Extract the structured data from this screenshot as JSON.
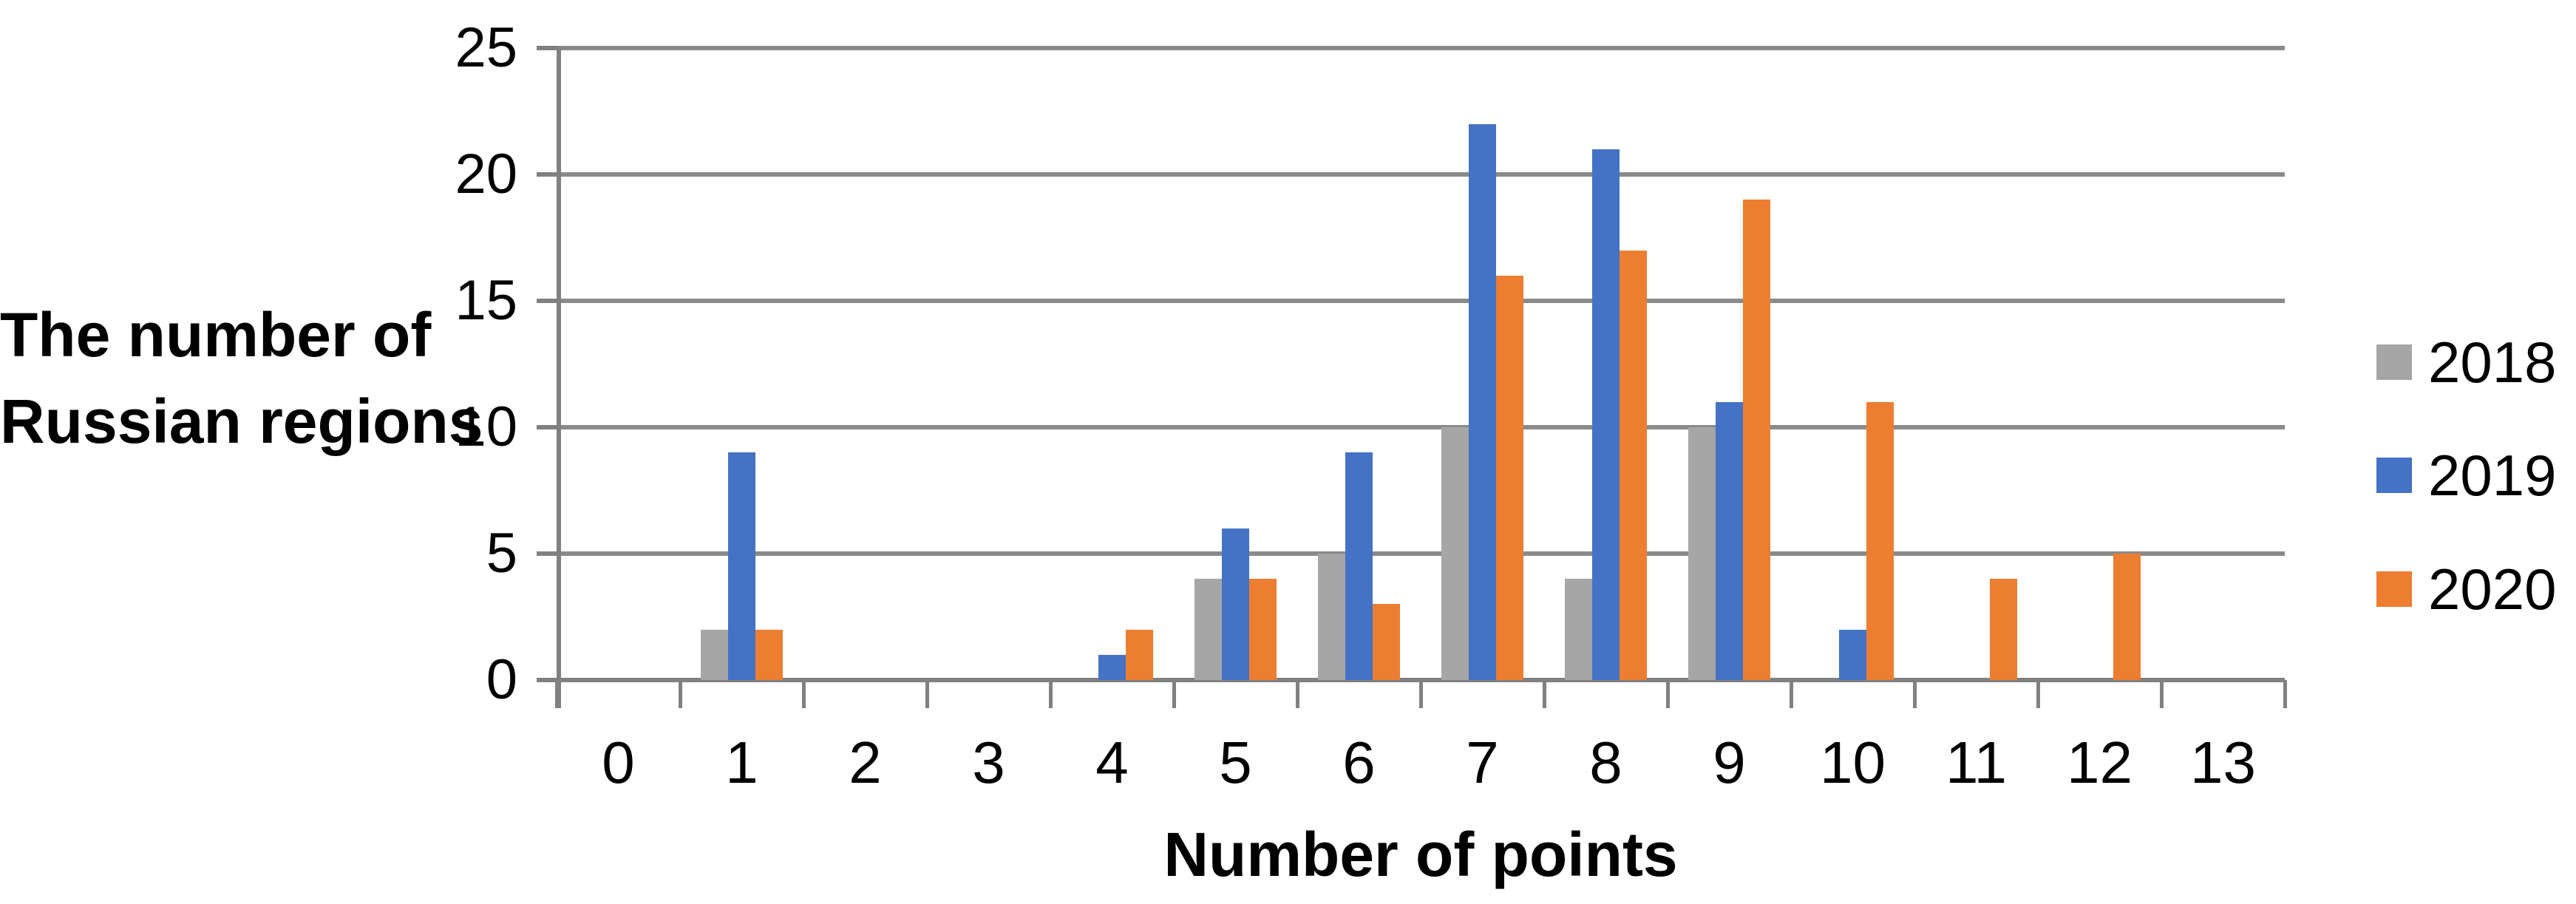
{
  "y_axis_title": {
    "line1": "The number of",
    "line2": "Russian regions"
  },
  "x_axis_title": "Number of points",
  "legend": [
    {
      "label": "2018",
      "color": "#A6A6A6"
    },
    {
      "label": "2019",
      "color": "#4472C4"
    },
    {
      "label": "2020",
      "color": "#ED7D31"
    }
  ],
  "chart_data": {
    "type": "bar",
    "categories": [
      "0",
      "1",
      "2",
      "3",
      "4",
      "5",
      "6",
      "7",
      "8",
      "9",
      "10",
      "11",
      "12",
      "13"
    ],
    "series": [
      {
        "name": "2018",
        "color": "#A6A6A6",
        "values": [
          0,
          2,
          0,
          0,
          0,
          4,
          5,
          10,
          4,
          10,
          0,
          0,
          0,
          0
        ]
      },
      {
        "name": "2019",
        "color": "#4472C4",
        "values": [
          0,
          9,
          0,
          0,
          1,
          6,
          9,
          22,
          21,
          11,
          2,
          0,
          0,
          0
        ]
      },
      {
        "name": "2020",
        "color": "#ED7D31",
        "values": [
          0,
          2,
          0,
          0,
          2,
          4,
          3,
          16,
          17,
          19,
          11,
          4,
          5,
          0
        ]
      }
    ],
    "title": "",
    "xlabel": "Number of points",
    "ylabel": "The number of Russian regions",
    "ylim": [
      0,
      25
    ],
    "yticks": [
      0,
      5,
      10,
      15,
      20,
      25
    ],
    "grid": true,
    "legend_position": "right"
  },
  "colors": {
    "gridline": "#8A8A8A",
    "axis": "#808080",
    "text": "#000000",
    "background": "#FFFFFF"
  }
}
